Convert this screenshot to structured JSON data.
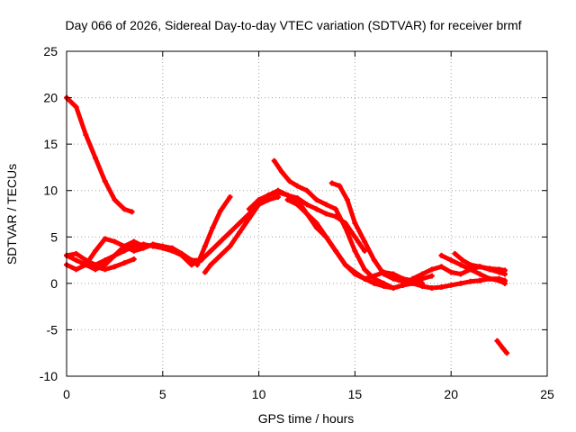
{
  "chart_data": {
    "type": "scatter",
    "title": "Day 066 of 2026, Sidereal Day-to-day VTEC variation (SDTVAR) for receiver brmf",
    "xlabel": "GPS time / hours",
    "ylabel": "SDTVAR / TECUs",
    "xlim": [
      0,
      25
    ],
    "ylim": [
      -10,
      25
    ],
    "xticks": [
      0,
      5,
      10,
      15,
      20,
      25
    ],
    "yticks": [
      -10,
      -5,
      0,
      5,
      10,
      15,
      20,
      25
    ],
    "xtick_labels": [
      "0",
      "5",
      "10",
      "15",
      "20",
      "25"
    ],
    "ytick_labels": [
      "-10",
      "-5",
      "0",
      "5",
      "10",
      "15",
      "20",
      "25"
    ],
    "grid": true,
    "series_color": "#ff0000",
    "series": [
      {
        "name": "arc-1",
        "x": [
          0.0,
          0.5,
          1.0,
          1.5,
          2.0,
          2.5,
          3.0,
          3.4
        ],
        "y": [
          20.0,
          19.0,
          16.0,
          13.5,
          11.0,
          9.0,
          8.0,
          7.7
        ]
      },
      {
        "name": "arc-2",
        "x": [
          0.0,
          0.5,
          1.0,
          1.5,
          2.0,
          2.5,
          3.0,
          3.5,
          4.0,
          4.5,
          5.0,
          5.5,
          6.0,
          6.5,
          7.0,
          7.5,
          8.0,
          8.5,
          9.0,
          9.5,
          10.0,
          10.5,
          11.0
        ],
        "y": [
          3.0,
          3.2,
          2.5,
          2.0,
          2.5,
          3.0,
          3.5,
          4.0,
          4.2,
          4.0,
          3.8,
          3.5,
          3.0,
          2.0,
          2.5,
          3.5,
          4.5,
          5.5,
          6.5,
          7.5,
          8.5,
          9.0,
          9.3
        ]
      },
      {
        "name": "arc-3",
        "x": [
          0.0,
          0.5,
          1.0,
          1.5,
          2.0,
          2.5,
          3.0,
          3.5,
          4.0,
          4.5,
          5.0,
          5.5,
          6.0,
          6.5,
          7.0
        ],
        "y": [
          2.0,
          1.5,
          2.0,
          3.5,
          4.8,
          4.5,
          4.0,
          3.5,
          3.8,
          4.2,
          4.0,
          3.8,
          3.2,
          2.5,
          2.5
        ]
      },
      {
        "name": "arc-4",
        "x": [
          0.0,
          0.5,
          1.0,
          1.5,
          2.0,
          2.5,
          3.0,
          3.5,
          4.0
        ],
        "y": [
          3.0,
          2.5,
          2.0,
          1.5,
          2.0,
          3.0,
          4.0,
          4.5,
          4.0
        ]
      },
      {
        "name": "arc-5",
        "x": [
          1.0,
          1.5,
          2.0,
          2.5,
          3.0,
          3.5
        ],
        "y": [
          2.5,
          1.8,
          1.5,
          1.8,
          2.2,
          2.6
        ]
      },
      {
        "name": "arc-6",
        "x": [
          6.8,
          7.2,
          7.6,
          8.0,
          8.5
        ],
        "y": [
          2.0,
          4.0,
          6.0,
          7.8,
          9.3
        ]
      },
      {
        "name": "arc-7",
        "x": [
          7.2,
          7.5,
          8.0,
          8.5,
          9.0,
          9.5,
          10.0,
          10.5,
          11.0,
          11.5,
          12.0,
          12.5,
          13.0,
          13.5,
          14.0,
          14.5,
          15.0,
          15.5
        ],
        "y": [
          1.2,
          2.0,
          3.0,
          4.0,
          5.5,
          7.0,
          8.5,
          9.5,
          9.8,
          9.5,
          9.2,
          8.5,
          8.0,
          7.5,
          7.2,
          6.5,
          5.0,
          3.5
        ]
      },
      {
        "name": "arc-8",
        "x": [
          10.8,
          11.2,
          11.6,
          12.0,
          12.5,
          13.0,
          13.5,
          14.0,
          14.5,
          15.0,
          15.5,
          16.0,
          16.5,
          17.0,
          17.5,
          18.0,
          18.5,
          19.0
        ],
        "y": [
          13.2,
          12.0,
          11.0,
          10.5,
          10.0,
          9.0,
          8.5,
          8.0,
          6.0,
          3.5,
          1.5,
          0.5,
          0.0,
          -0.5,
          -0.2,
          0.0,
          0.5,
          0.8
        ]
      },
      {
        "name": "arc-9",
        "x": [
          9.5,
          10.0,
          10.5,
          11.0,
          11.5,
          12.0,
          12.5,
          13.0,
          13.5,
          14.0,
          14.5,
          15.0,
          15.5,
          16.0,
          16.5,
          17.0,
          17.5,
          18.0,
          18.5
        ],
        "y": [
          8.0,
          9.0,
          9.5,
          10.0,
          9.5,
          9.0,
          7.5,
          6.0,
          5.0,
          3.5,
          2.0,
          1.0,
          0.5,
          0.8,
          1.2,
          1.0,
          0.5,
          0.3,
          0.0
        ]
      },
      {
        "name": "arc-10",
        "x": [
          11.5,
          12.0,
          12.5,
          13.0,
          13.5,
          14.0,
          14.5,
          15.0,
          15.5,
          16.0,
          16.5,
          17.0,
          17.5,
          18.0,
          18.5,
          19.0,
          19.5,
          20.0,
          20.5,
          21.0,
          21.5,
          22.0,
          22.5,
          22.8
        ],
        "y": [
          9.0,
          8.5,
          7.5,
          6.5,
          5.0,
          3.5,
          2.0,
          1.2,
          0.5,
          0.0,
          -0.3,
          -0.5,
          -0.2,
          0.5,
          1.0,
          1.5,
          1.8,
          1.2,
          1.0,
          1.5,
          1.8,
          1.5,
          1.2,
          1.0
        ]
      },
      {
        "name": "arc-11",
        "x": [
          13.8,
          14.2,
          14.6,
          15.0,
          15.5,
          16.0,
          16.5,
          17.0,
          17.5,
          18.0,
          18.5,
          19.0,
          19.5,
          20.0,
          20.5,
          21.0,
          21.5,
          22.0,
          22.5,
          22.8
        ],
        "y": [
          10.8,
          10.5,
          9.0,
          6.5,
          4.5,
          2.5,
          1.0,
          0.5,
          0.2,
          0.0,
          -0.3,
          -0.5,
          -0.4,
          -0.2,
          0.0,
          0.2,
          0.3,
          0.5,
          0.5,
          0.3
        ]
      },
      {
        "name": "arc-12",
        "x": [
          19.5,
          20.0,
          20.5,
          21.0,
          21.5,
          22.0,
          22.5,
          22.8
        ],
        "y": [
          3.0,
          2.5,
          2.0,
          1.5,
          1.0,
          0.5,
          0.3,
          0.0
        ]
      },
      {
        "name": "arc-13",
        "x": [
          20.2,
          20.6,
          21.0,
          21.5,
          22.0,
          22.5,
          22.8
        ],
        "y": [
          3.2,
          2.5,
          2.0,
          1.8,
          1.6,
          1.5,
          1.4
        ]
      },
      {
        "name": "arc-14",
        "x": [
          22.4,
          22.7,
          22.9
        ],
        "y": [
          -6.2,
          -7.0,
          -7.5
        ]
      }
    ]
  }
}
